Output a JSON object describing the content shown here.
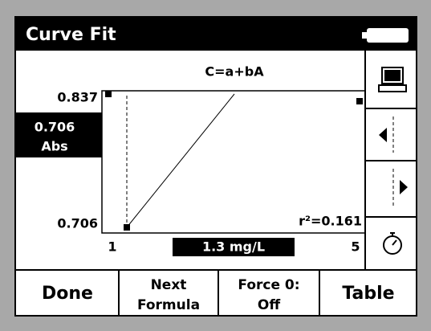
{
  "header": {
    "title": "Curve Fit"
  },
  "plot": {
    "formula": "C=a+bA",
    "y_max": "0.837",
    "y_min": "0.706",
    "x_min": "1",
    "x_max": "5",
    "fit": "r²=0.161"
  },
  "reading": {
    "value": "0.706",
    "unit": "Abs"
  },
  "result": "1.3 mg/L",
  "buttons": [
    {
      "lines": [
        "Done"
      ]
    },
    {
      "lines": [
        "Next",
        "Formula"
      ]
    },
    {
      "lines": [
        "Force 0:",
        "Off"
      ]
    },
    {
      "lines": [
        "Table"
      ]
    }
  ]
}
